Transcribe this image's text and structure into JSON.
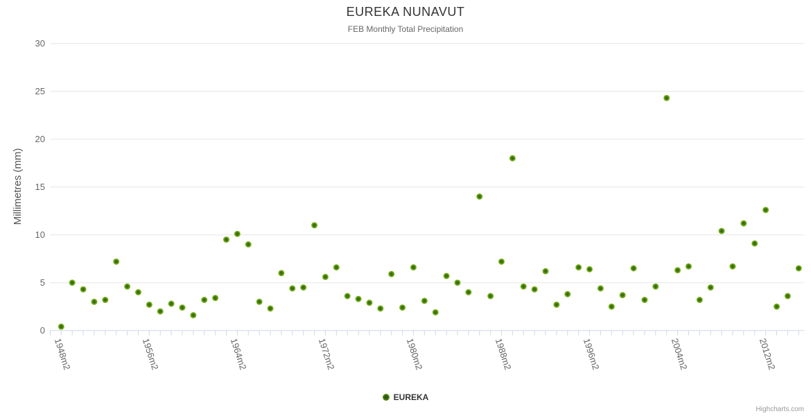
{
  "header": {
    "title": "EUREKA NUNAVUT",
    "subtitle": "FEB Monthly Total Precipitation"
  },
  "y_axis": {
    "title": "Millimetres (mm)",
    "tick_labels": [
      "0",
      "5",
      "10",
      "15",
      "20",
      "25",
      "30"
    ]
  },
  "x_axis": {
    "tick_labels": [
      "1948m2",
      "1956m2",
      "1964m2",
      "1972m2",
      "1980m2",
      "1988m2",
      "1996m2",
      "2004m2",
      "2012m2"
    ]
  },
  "legend": {
    "series_label": "EUREKA"
  },
  "credits": {
    "text": "Highcharts.com"
  },
  "colors": {
    "point_outer": "#7db41d",
    "point_inner": "#2e5c0e",
    "grid": "#e6e6e6",
    "axis": "#ccd6eb",
    "title_text": "#333333",
    "subtitle_text": "#666666",
    "axis_label_text": "#666666",
    "legend_text": "#333333",
    "credits_text": "#999999"
  },
  "chart_data": {
    "type": "scatter",
    "title": "EUREKA NUNAVUT",
    "subtitle": "FEB Monthly Total Precipitation",
    "xlabel": "",
    "ylabel": "Millimetres (mm)",
    "ylim": [
      0,
      30
    ],
    "y_ticks": [
      0,
      5,
      10,
      15,
      20,
      25,
      30
    ],
    "grid": true,
    "legend_position": "bottom-center",
    "x_tick_label_years": [
      1948,
      1956,
      1964,
      1972,
      1980,
      1988,
      1996,
      2004,
      2012
    ],
    "series": [
      {
        "name": "EUREKA",
        "x": [
          1948,
          1949,
          1950,
          1951,
          1952,
          1953,
          1954,
          1955,
          1956,
          1957,
          1958,
          1959,
          1960,
          1961,
          1962,
          1963,
          1964,
          1965,
          1966,
          1967,
          1968,
          1969,
          1970,
          1971,
          1972,
          1973,
          1974,
          1975,
          1976,
          1977,
          1978,
          1979,
          1980,
          1981,
          1982,
          1983,
          1984,
          1985,
          1986,
          1987,
          1988,
          1989,
          1990,
          1991,
          1992,
          1993,
          1994,
          1995,
          1996,
          1997,
          1998,
          1999,
          2000,
          2001,
          2002,
          2003,
          2004,
          2005,
          2006,
          2007,
          2008,
          2009,
          2010,
          2011,
          2012,
          2013,
          2014,
          2015
        ],
        "values": [
          0.4,
          5.0,
          4.3,
          3.0,
          3.2,
          7.2,
          4.6,
          4.0,
          2.7,
          2.0,
          2.8,
          2.4,
          1.6,
          3.2,
          3.4,
          9.5,
          10.1,
          9.0,
          3.0,
          2.3,
          6.0,
          4.4,
          4.5,
          11.0,
          5.6,
          6.6,
          3.6,
          3.3,
          2.9,
          2.3,
          5.9,
          2.4,
          6.6,
          3.1,
          1.9,
          5.7,
          5.0,
          4.0,
          14.0,
          3.6,
          7.2,
          18.0,
          4.6,
          4.3,
          6.2,
          2.7,
          3.8,
          6.6,
          6.4,
          4.4,
          2.5,
          3.7,
          6.5,
          3.2,
          4.6,
          24.3,
          6.3,
          6.7,
          3.2,
          4.5,
          10.4,
          6.7,
          11.2,
          9.1,
          12.6,
          2.5,
          3.6,
          6.5
        ]
      }
    ]
  }
}
